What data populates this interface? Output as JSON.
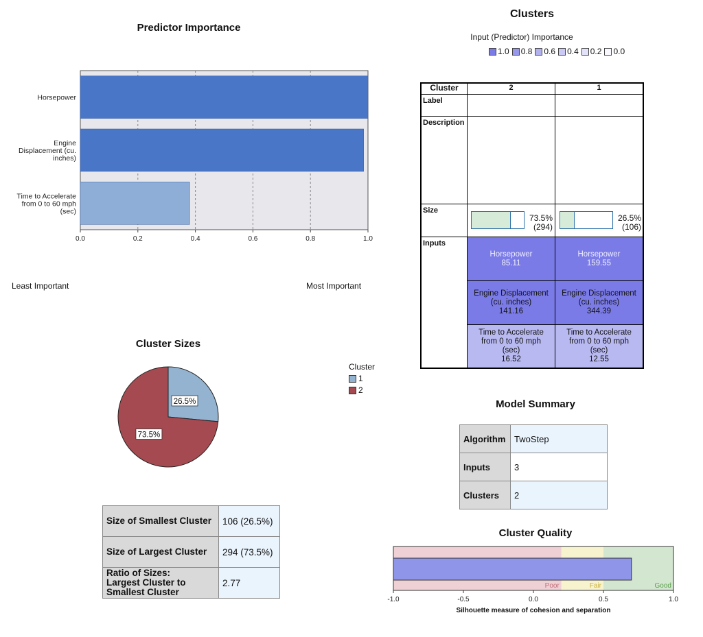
{
  "chart_data": [
    {
      "id": "predictor-importance",
      "type": "bar",
      "orientation": "horizontal",
      "title": "Predictor Importance",
      "categories": [
        "Horsepower",
        "Engine Displacement (cu. inches)",
        "Time to Accelerate from 0 to 60 mph (sec)"
      ],
      "category_lines": [
        [
          "Horsepower"
        ],
        [
          "Engine",
          "Displacement (cu.",
          "inches)"
        ],
        [
          "Time to Accelerate",
          "from 0 to 60 mph",
          "(sec)"
        ]
      ],
      "values": [
        1.0,
        0.985,
        0.38
      ],
      "bar_colors": [
        "#4a76c8",
        "#4a76c8",
        "#8eaed8"
      ],
      "xlim": [
        0,
        1.0
      ],
      "xticks": [
        "0.0",
        "0.2",
        "0.4",
        "0.6",
        "0.8",
        "1.0"
      ],
      "least_label": "Least Important",
      "most_label": "Most Important",
      "grid": "vertical dashed"
    },
    {
      "id": "cluster-sizes",
      "type": "pie",
      "title": "Cluster Sizes",
      "legend_title": "Cluster",
      "slices": [
        {
          "name": "1",
          "value": 26.5,
          "label": "26.5%",
          "color": "#93b3d0"
        },
        {
          "name": "2",
          "value": 73.5,
          "label": "73.5%",
          "color": "#a54a50"
        }
      ],
      "legend_position": "right"
    },
    {
      "id": "cluster-quality",
      "type": "bar",
      "orientation": "horizontal",
      "title": "Cluster Quality",
      "value": 0.7,
      "xlim": [
        -1.0,
        1.0
      ],
      "xticks": [
        "-1.0",
        "-0.5",
        "0.0",
        "0.5",
        "1.0"
      ],
      "bands": [
        {
          "label": "Poor",
          "from": -1.0,
          "to": 0.2,
          "color": "#efd0d4",
          "text_color": "#c0707a"
        },
        {
          "label": "Fair",
          "from": 0.2,
          "to": 0.5,
          "color": "#f8f3cf",
          "text_color": "#c8b040"
        },
        {
          "label": "Good",
          "from": 0.5,
          "to": 1.0,
          "color": "#d3e6d0",
          "text_color": "#5a9e4a"
        }
      ],
      "bar_color": "#8f96ea",
      "xlabel": "Silhouette measure of cohesion and separation"
    }
  ],
  "size_table": [
    {
      "key": "Size of Smallest Cluster",
      "value": "106 (26.5%)"
    },
    {
      "key": "Size of Largest Cluster",
      "value": "294 (73.5%)"
    },
    {
      "key": "Ratio of Sizes: Largest Cluster to Smallest Cluster",
      "key_lines": [
        "Ratio of Sizes:",
        "Largest Cluster to",
        "Smallest Cluster"
      ],
      "value": "2.77"
    }
  ],
  "clusters": {
    "title": "Clusters",
    "importance_title": "Input (Predictor) Importance",
    "importance_legend": [
      {
        "label": "1.0",
        "color": "#7b7be8"
      },
      {
        "label": "0.8",
        "color": "#9797ec"
      },
      {
        "label": "0.6",
        "color": "#b1b1f0"
      },
      {
        "label": "0.4",
        "color": "#cacaf5"
      },
      {
        "label": "0.2",
        "color": "#e2e2fa"
      },
      {
        "label": "0.0",
        "color": "#f8f8fe"
      }
    ],
    "header": {
      "cluster": "Cluster",
      "c2": "2",
      "c1": "1"
    },
    "row_labels": {
      "label": "Label",
      "description": "Description",
      "size": "Size",
      "inputs": "Inputs"
    },
    "sizes": [
      {
        "cluster": "2",
        "pct_value": 73.5,
        "pct": "73.5%",
        "count": "(294)"
      },
      {
        "cluster": "1",
        "pct_value": 26.5,
        "pct": "26.5%",
        "count": "(106)"
      }
    ],
    "inputs": [
      {
        "lines": [
          "Horsepower"
        ],
        "c2": "85.11",
        "c1": "159.55",
        "shade": "dark"
      },
      {
        "lines": [
          "Engine Displacement",
          "(cu. inches)"
        ],
        "c2": "141.16",
        "c1": "344.39",
        "shade": "dark"
      },
      {
        "lines": [
          "Time to Accelerate",
          "from 0 to 60 mph",
          "(sec)"
        ],
        "c2": "16.52",
        "c1": "12.55",
        "shade": "light"
      }
    ]
  },
  "model_summary": {
    "title": "Model Summary",
    "rows": [
      {
        "key": "Algorithm",
        "value": "TwoStep"
      },
      {
        "key": "Inputs",
        "value": "3"
      },
      {
        "key": "Clusters",
        "value": "2"
      }
    ]
  }
}
